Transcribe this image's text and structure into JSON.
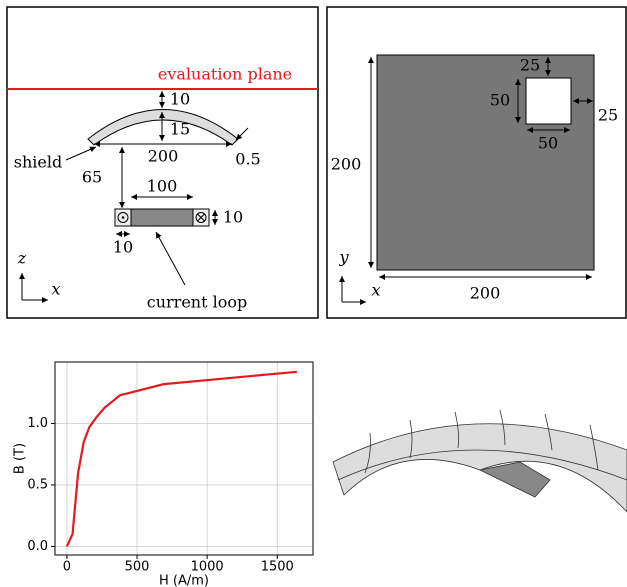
{
  "diagram_left": {
    "evaluation_plane": "evaluation plane",
    "gap_above": "10",
    "shield_height": "15",
    "shield_width": "200",
    "shield_thickness": "0.5",
    "shield_label": "shield",
    "distance": "65",
    "loop_width": "100",
    "loop_height": "10",
    "loop_conductor": "10",
    "loop_label": "current loop",
    "axis_z": "z",
    "axis_x": "x"
  },
  "diagram_right": {
    "hole_top": "25",
    "hole_height": "50",
    "hole_right": "25",
    "hole_width": "50",
    "side_height": "200",
    "side_width": "200",
    "axis_y": "y",
    "axis_x": "x"
  },
  "chart_data": {
    "type": "line",
    "x_label": "H (A/m)",
    "y_label": "B (T)",
    "x": [
      0,
      40,
      80,
      120,
      160,
      210,
      270,
      380,
      690,
      1640
    ],
    "series": [
      {
        "color": "#e41a1c",
        "values": [
          0,
          0.1,
          0.6,
          0.85,
          0.97,
          1.05,
          1.13,
          1.23,
          1.32,
          1.42
        ]
      }
    ],
    "xlim": [
      -85,
      1755
    ],
    "ylim": [
      -0.07,
      1.5
    ],
    "xticks": [
      0,
      500,
      1000,
      1500
    ],
    "yticks": [
      {
        "value": 0,
        "label": "0.0"
      },
      0.5,
      {
        "value": 1,
        "label": "1.0"
      }
    ],
    "grid": true
  }
}
